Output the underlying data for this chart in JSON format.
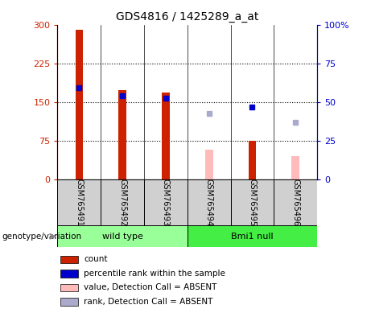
{
  "title": "GDS4816 / 1425289_a_at",
  "samples": [
    "GSM765491",
    "GSM765492",
    "GSM765493",
    "GSM765494",
    "GSM765495",
    "GSM765496"
  ],
  "count_values": [
    290,
    173,
    168,
    null,
    75,
    null
  ],
  "count_absent_values": [
    null,
    null,
    null,
    57,
    null,
    45
  ],
  "rank_values": [
    178,
    162,
    157,
    null,
    140,
    null
  ],
  "rank_absent_values": [
    null,
    null,
    null,
    128,
    null,
    110
  ],
  "left_ylim": [
    0,
    300
  ],
  "right_ylim": [
    0,
    100
  ],
  "left_yticks": [
    0,
    75,
    150,
    225,
    300
  ],
  "right_yticks": [
    0,
    25,
    50,
    75,
    100
  ],
  "count_color": "#cc2200",
  "count_absent_color": "#ffbbbb",
  "rank_color": "#0000cc",
  "rank_absent_color": "#aaaacc",
  "group1_color": "#99ff99",
  "group2_color": "#44ee44",
  "group_label": "genotype/variation",
  "wild_type_label": "wild type",
  "bmi1_label": "Bmi1 null",
  "legend_items": [
    [
      "#cc2200",
      "count"
    ],
    [
      "#0000cc",
      "percentile rank within the sample"
    ],
    [
      "#ffbbbb",
      "value, Detection Call = ABSENT"
    ],
    [
      "#aaaacc",
      "rank, Detection Call = ABSENT"
    ]
  ]
}
